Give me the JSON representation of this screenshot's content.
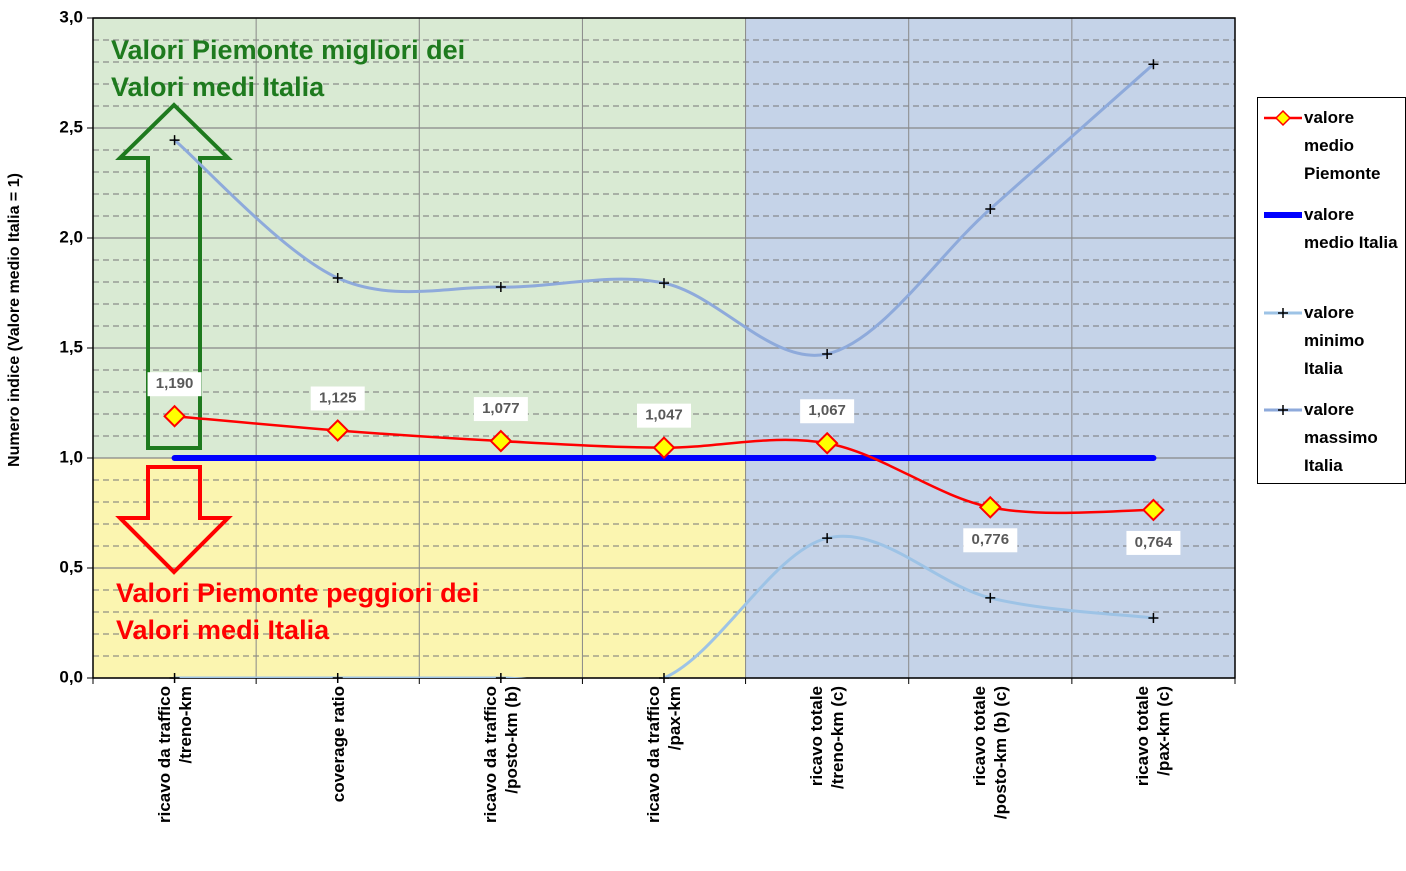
{
  "chart_data": {
    "type": "line",
    "y_label": "Numero indice (Valore medio Italia = 1)",
    "annotations": [
      "Valori Piemonte migliori dei\nValori medi Italia",
      "Valori Piemonte peggiori dei\nValori medi Italia"
    ],
    "categories": [
      "ricavo da traffico\n/treno-km",
      "coverage ratio",
      "ricavo da traffico\n/posto-km (b)",
      "ricavo da traffico\n/pax-km",
      "ricavo totale\n/treno-km (c)",
      "ricavo totale\n/posto-km (b) (c)",
      "ricavo totale\n/pax-km (c)"
    ],
    "series": [
      {
        "name": "valore medio Piemonte",
        "color": "#ff0000",
        "values": [
          1.19,
          1.125,
          1.077,
          1.047,
          1.067,
          0.776,
          0.764
        ],
        "value_labels": [
          "1,190",
          "1,125",
          "1,077",
          "1,047",
          "1,067",
          "0,776",
          "0,764"
        ]
      },
      {
        "name": "valore medio Italia",
        "color": "#0000ff",
        "values": [
          1,
          1,
          1,
          1,
          1,
          1,
          1
        ]
      },
      {
        "name": "valore minimo Italia",
        "color": "#9dc3e6",
        "values": [
          0,
          0,
          0,
          0,
          0.636,
          0.364,
          0.273
        ]
      },
      {
        "name": "valore massimo Italia",
        "color": "#8eaadb",
        "values": [
          2.445,
          1.818,
          1.777,
          1.795,
          1.473,
          2.132,
          2.79
        ]
      }
    ],
    "ylim": [
      0,
      3
    ],
    "yticks": [
      {
        "value": 0,
        "label": "0,0"
      },
      {
        "value": 0.5,
        "label": "0,5"
      },
      {
        "value": 1,
        "label": "1,0"
      },
      {
        "value": 1.5,
        "label": "1,5"
      },
      {
        "value": 2,
        "label": "2,0"
      },
      {
        "value": 2.5,
        "label": "2,5"
      },
      {
        "value": 3,
        "label": "3,0"
      }
    ],
    "grid": true
  }
}
